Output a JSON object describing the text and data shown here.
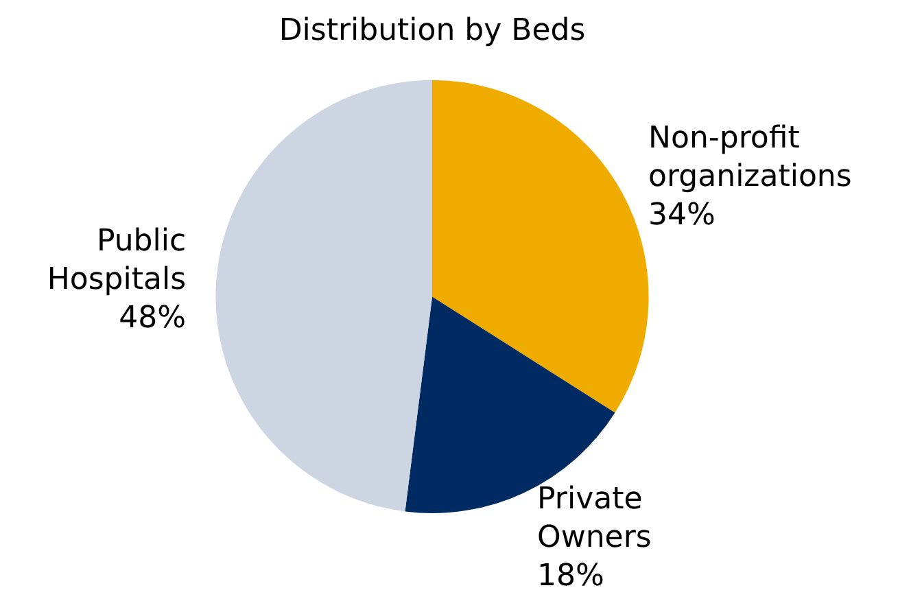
{
  "chart_data": {
    "type": "pie",
    "title": "Distribution by Beds",
    "categories": [
      "Non-profit organizations",
      "Private Owners",
      "Public Hospitals"
    ],
    "values": [
      34,
      18,
      48
    ],
    "colors": [
      "#f0ab00",
      "#002a62",
      "#cdd5e2"
    ],
    "value_labels": [
      "34%",
      "18%",
      "48%"
    ]
  }
}
